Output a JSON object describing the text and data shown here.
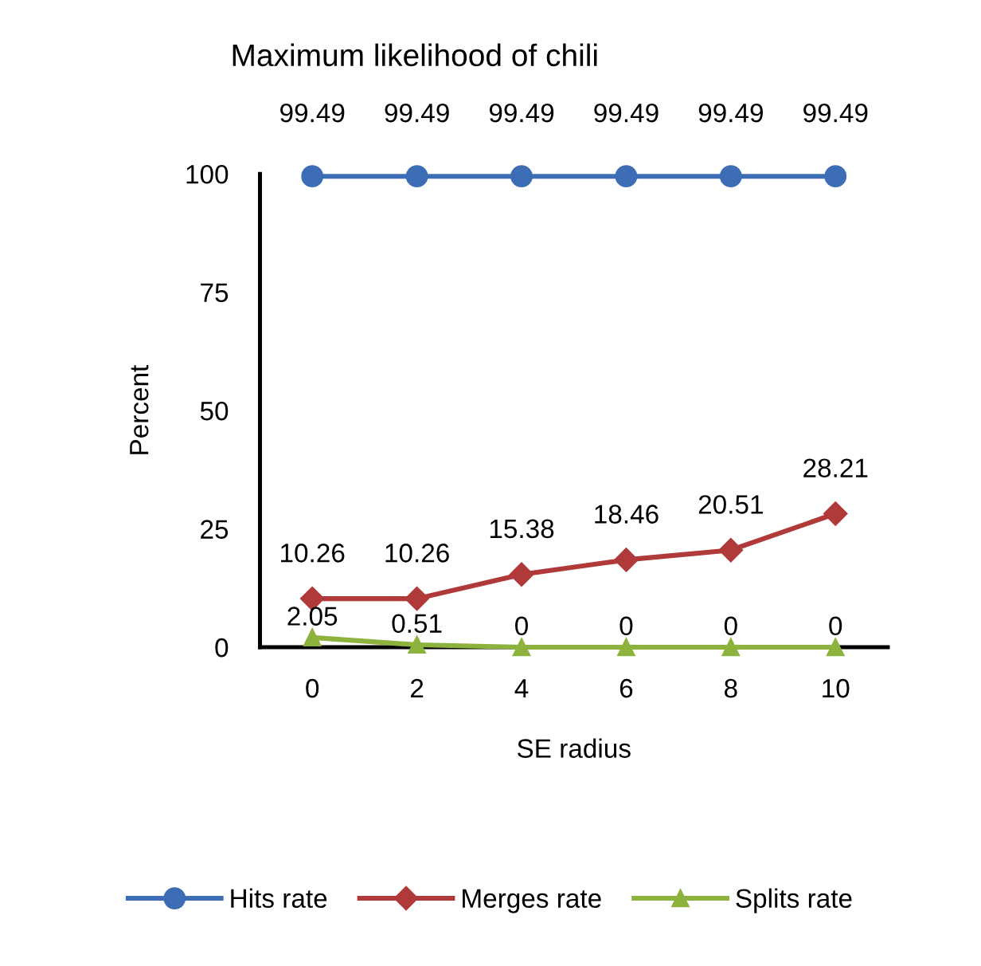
{
  "chart_data": {
    "type": "line",
    "title": "Maximum likelihood of chili",
    "xlabel": "SE radius",
    "ylabel": "Percent",
    "categories": [
      "0",
      "2",
      "4",
      "6",
      "8",
      "10"
    ],
    "series": [
      {
        "name": "Hits rate",
        "color": "#3d6db5",
        "marker": "circle",
        "values": [
          99.49,
          99.49,
          99.49,
          99.49,
          99.49,
          99.49
        ]
      },
      {
        "name": "Merges rate",
        "color": "#b03a3a",
        "marker": "diamond",
        "values": [
          10.26,
          10.26,
          15.38,
          18.46,
          20.51,
          28.21
        ]
      },
      {
        "name": "Splits rate",
        "color": "#8db33e",
        "marker": "triangle",
        "values": [
          2.05,
          0.51,
          0,
          0,
          0,
          0
        ]
      }
    ],
    "ylim": [
      0,
      100
    ],
    "yticks": [
      0,
      25,
      50,
      75,
      100
    ],
    "grid": false,
    "legend": "bottom",
    "data_labels": true,
    "line_style": "solid"
  }
}
